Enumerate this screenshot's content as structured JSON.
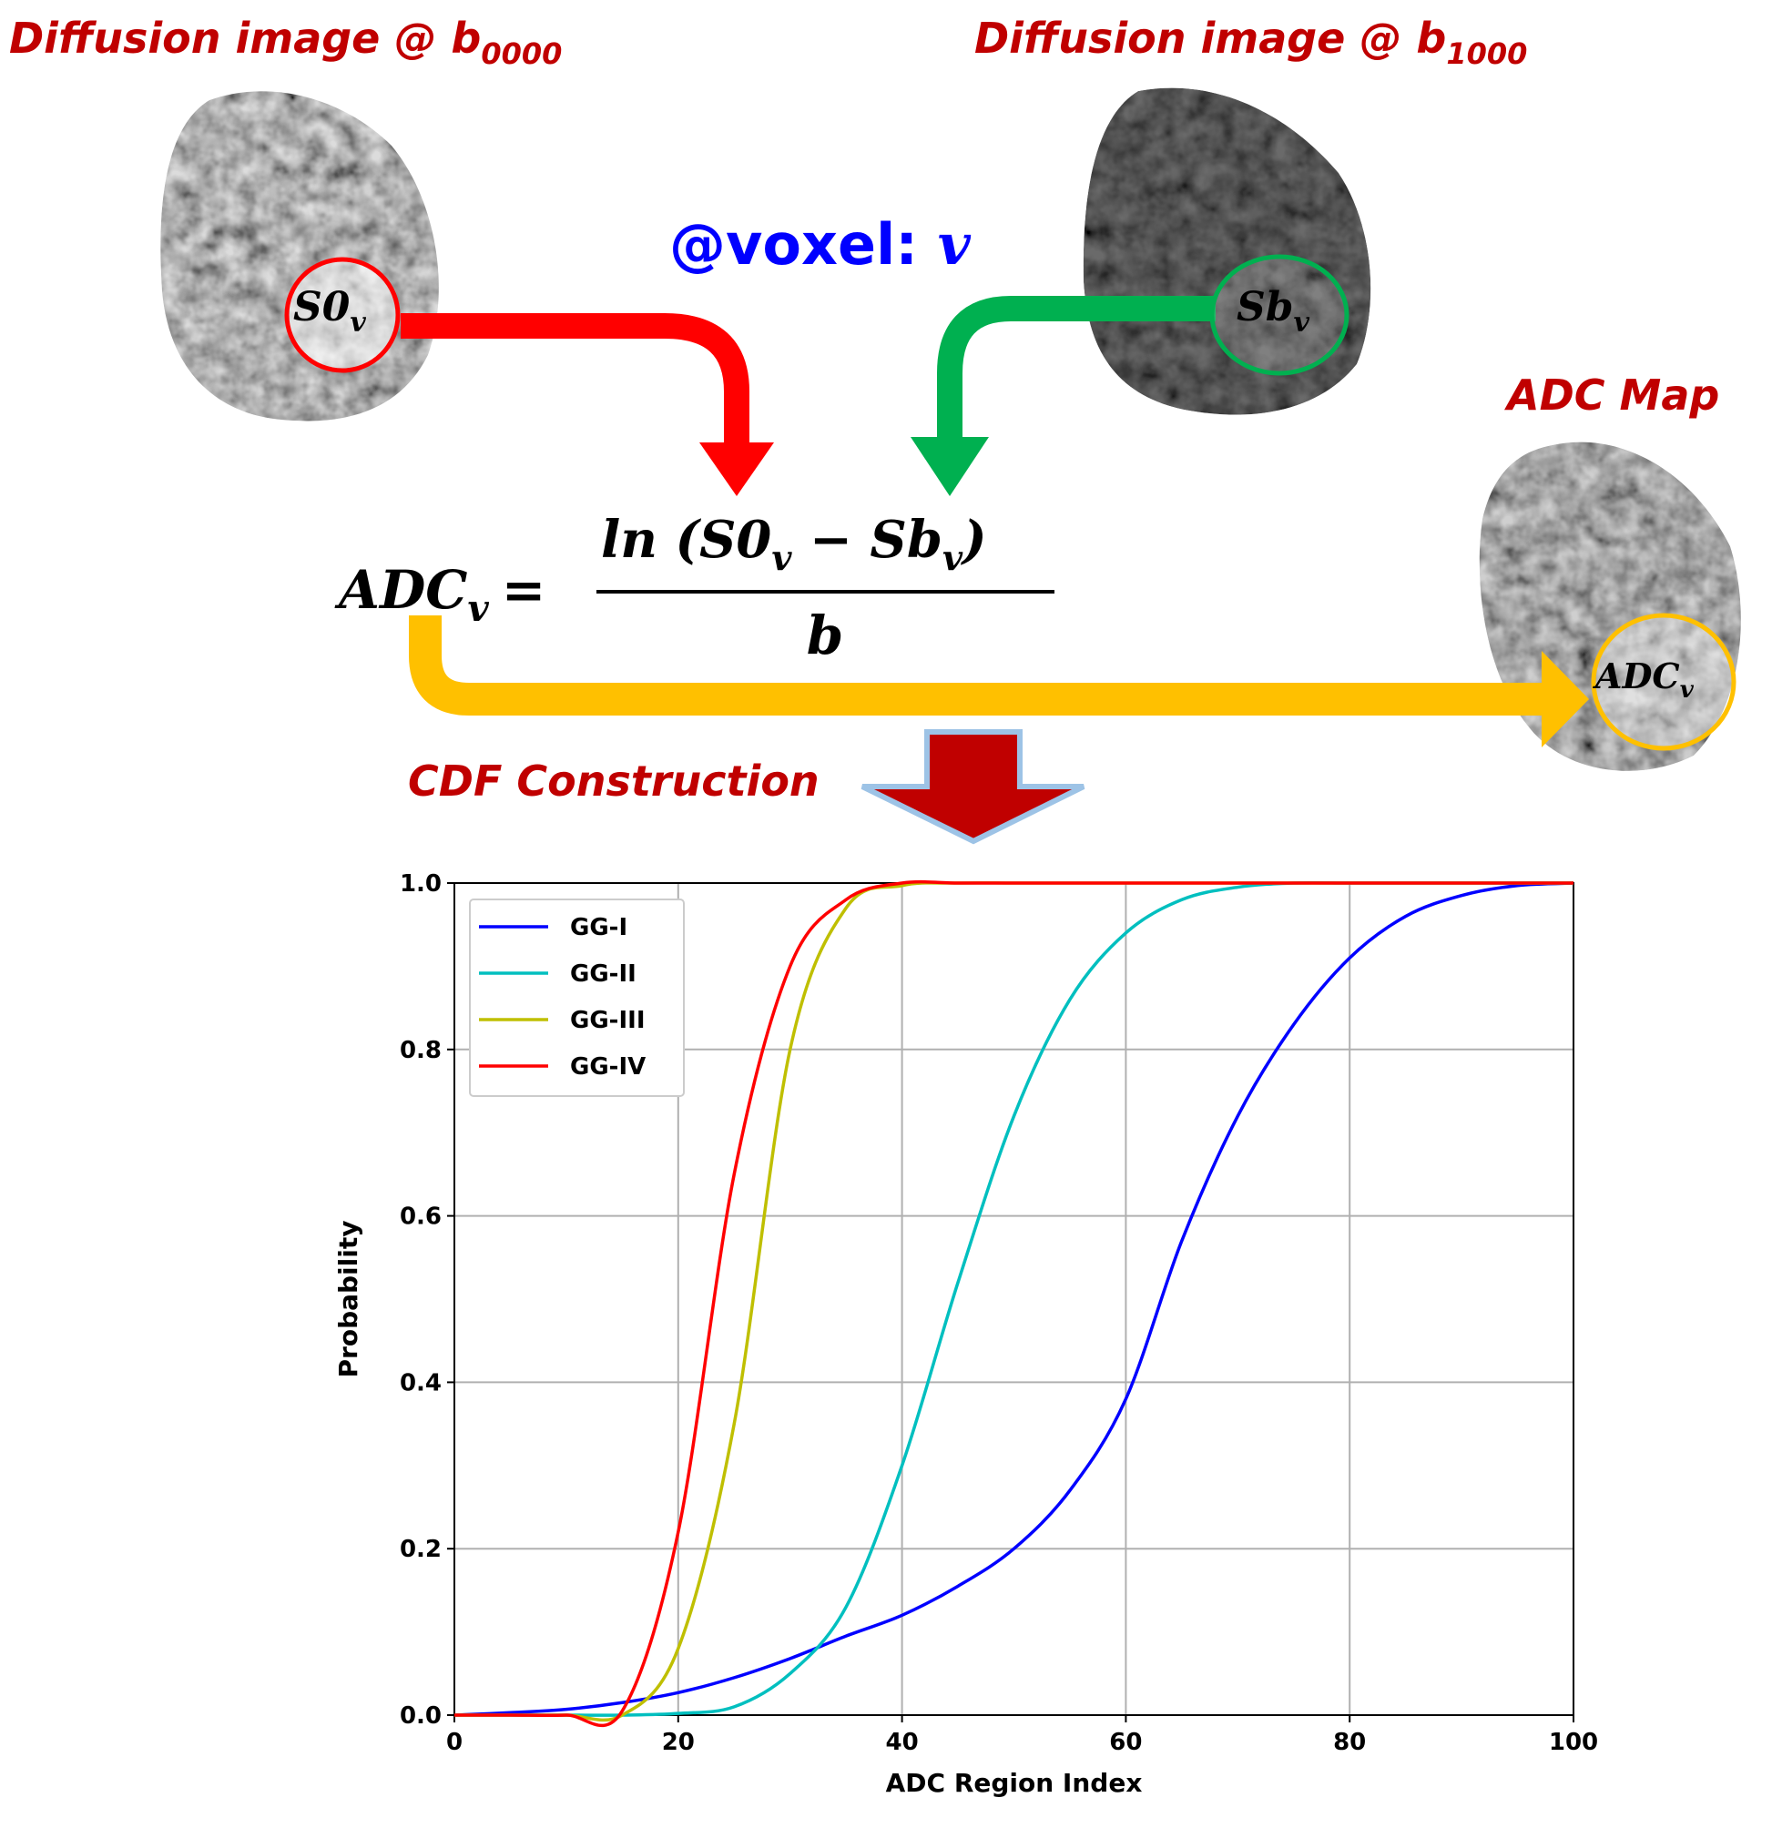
{
  "diagram": {
    "image_b0": {
      "title": "Diffusion image @ b",
      "subscript": "0000"
    },
    "image_b1000": {
      "title": "Diffusion image @ b",
      "subscript": "1000"
    },
    "voxel": {
      "label": "@voxel: ",
      "symbol": "v"
    },
    "s0": {
      "label": "S0",
      "subscript": "v"
    },
    "sb": {
      "label": "Sb",
      "subscript": "v"
    },
    "adc_map": {
      "title": "ADC Map"
    },
    "adc_voxel": {
      "label": "ADC",
      "subscript": "v"
    },
    "formula": {
      "lhs": "ADC",
      "lhs_subscript": "v",
      "equals": "=",
      "num_a": "ln (S0",
      "num_a_subscript": "v",
      "num_b": " − Sb",
      "num_b_subscript": "v",
      "num_close": ")",
      "denominator": "b"
    },
    "cdf": {
      "label": "CDF Construction"
    }
  },
  "chart_data": {
    "type": "line",
    "xlabel": "ADC Region Index",
    "ylabel": "Probability",
    "x": [
      0,
      5,
      10,
      15,
      20,
      25,
      30,
      35,
      40,
      45,
      50,
      55,
      60,
      65,
      70,
      75,
      80,
      85,
      90,
      95,
      100
    ],
    "series": [
      {
        "name": "GG-I",
        "color": "#0000ff",
        "values": [
          0,
          0.003,
          0.007,
          0.015,
          0.027,
          0.045,
          0.068,
          0.095,
          0.12,
          0.155,
          0.2,
          0.27,
          0.38,
          0.57,
          0.72,
          0.83,
          0.91,
          0.96,
          0.985,
          0.997,
          1.0
        ]
      },
      {
        "name": "GG-II",
        "color": "#00bfbf",
        "values": [
          0,
          0,
          0,
          0,
          0.002,
          0.01,
          0.05,
          0.13,
          0.3,
          0.52,
          0.72,
          0.86,
          0.94,
          0.98,
          0.995,
          1,
          1,
          1,
          1,
          1,
          1
        ]
      },
      {
        "name": "GG-III",
        "color": "#bfbf00",
        "values": [
          0,
          0,
          0,
          0,
          0.08,
          0.35,
          0.8,
          0.97,
          0.997,
          1,
          1,
          1,
          1,
          1,
          1,
          1,
          1,
          1,
          1,
          1,
          1
        ]
      },
      {
        "name": "GG-IV",
        "color": "#ff0000",
        "values": [
          0,
          0,
          0,
          0.005,
          0.22,
          0.65,
          0.9,
          0.98,
          1,
          1,
          1,
          1,
          1,
          1,
          1,
          1,
          1,
          1,
          1,
          1,
          1
        ]
      }
    ],
    "xlim": [
      0,
      100
    ],
    "xticks": [
      0,
      20,
      40,
      60,
      80,
      100
    ],
    "ylim": [
      0,
      1
    ],
    "yticks": [
      {
        "value": 0,
        "label": "0.0"
      },
      0.2,
      0.4,
      0.6,
      0.8,
      {
        "value": 1,
        "label": "1.0"
      }
    ],
    "grid": true,
    "legend": "upper left"
  }
}
